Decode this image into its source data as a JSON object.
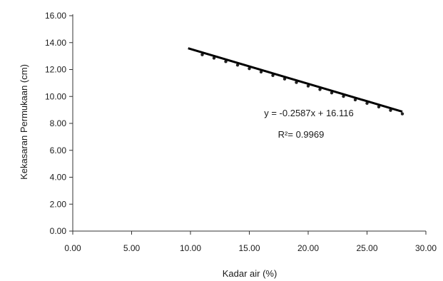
{
  "chart_data": {
    "type": "scatter",
    "title": "",
    "xlabel": "Kadar air (%)",
    "ylabel": "Kekasaran Permukaan (cm)",
    "xlim": [
      0,
      30
    ],
    "ylim": [
      0,
      16
    ],
    "x_ticks": [
      "0.00",
      "5.00",
      "10.00",
      "15.00",
      "20.00",
      "25.00",
      "30.00"
    ],
    "y_ticks": [
      "0.00",
      "2.00",
      "4.00",
      "6.00",
      "8.00",
      "10.00",
      "12.00",
      "14.00",
      "16.00"
    ],
    "grid": false,
    "legend": "none",
    "series": [
      {
        "marker": "dot",
        "color": "#222222",
        "x": [
          11,
          12,
          13,
          14,
          15,
          16,
          17,
          18,
          19,
          20,
          21,
          22,
          23,
          24,
          25,
          26,
          27,
          28
        ],
        "y": [
          13.26,
          13.01,
          12.75,
          12.49,
          12.23,
          11.98,
          11.72,
          11.46,
          11.2,
          10.94,
          10.68,
          10.43,
          10.17,
          9.91,
          9.65,
          9.39,
          9.13,
          8.87
        ]
      }
    ],
    "trendline": {
      "color": "#000000",
      "slope": -0.2587,
      "intercept": 16.116,
      "x_range": [
        9.8,
        28
      ]
    },
    "annotations": {
      "equation": "y = -0.2587x + 16.116",
      "r_squared": "R²= 0.9969"
    }
  }
}
